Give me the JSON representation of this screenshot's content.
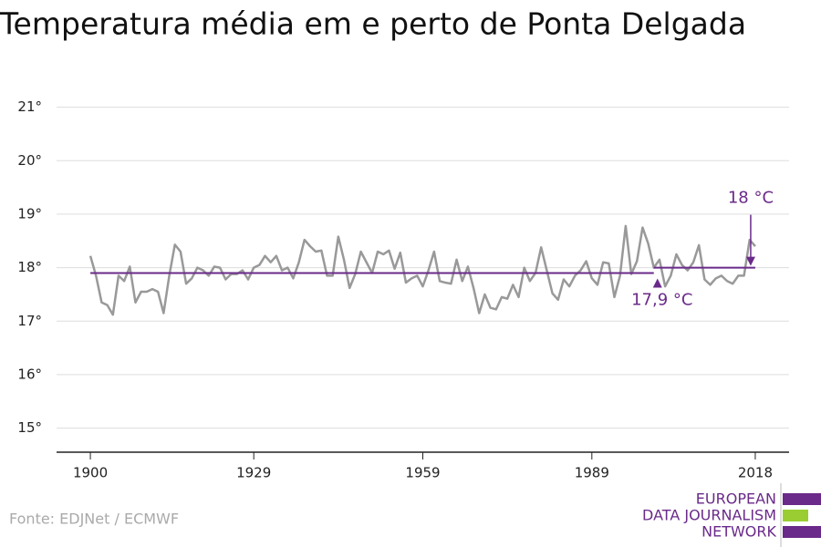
{
  "chart_data": {
    "type": "line",
    "title": "Temperatura média em e perto de Ponta Delgada",
    "source": "Fonte: EDJNet / ECMWF",
    "logo": [
      "EUROPEAN",
      "DATA JOURNALISM",
      "NETWORK"
    ],
    "x": [
      1900,
      1901,
      1902,
      1903,
      1904,
      1905,
      1906,
      1907,
      1908,
      1909,
      1910,
      1911,
      1912,
      1913,
      1914,
      1915,
      1916,
      1917,
      1918,
      1919,
      1920,
      1921,
      1922,
      1923,
      1924,
      1925,
      1926,
      1927,
      1928,
      1929,
      1930,
      1931,
      1932,
      1933,
      1934,
      1935,
      1936,
      1937,
      1938,
      1939,
      1940,
      1941,
      1942,
      1943,
      1944,
      1945,
      1946,
      1947,
      1948,
      1949,
      1950,
      1951,
      1952,
      1953,
      1954,
      1955,
      1956,
      1957,
      1958,
      1959,
      1960,
      1961,
      1962,
      1963,
      1964,
      1965,
      1966,
      1967,
      1968,
      1969,
      1970,
      1971,
      1972,
      1973,
      1974,
      1975,
      1976,
      1977,
      1978,
      1979,
      1980,
      1981,
      1982,
      1983,
      1984,
      1985,
      1986,
      1987,
      1988,
      1989,
      1990,
      1991,
      1992,
      1993,
      1994,
      1995,
      1996,
      1997,
      1998,
      1999,
      2000,
      2001,
      2002,
      2003,
      2004,
      2005,
      2006,
      2007,
      2008,
      2009,
      2010,
      2011,
      2012,
      2013,
      2014,
      2015,
      2016,
      2017,
      2018
    ],
    "series": [
      {
        "color": "#999999",
        "values": [
          18.22,
          17.85,
          17.35,
          17.3,
          17.12,
          17.85,
          17.75,
          18.02,
          17.35,
          17.55,
          17.55,
          17.6,
          17.55,
          17.15,
          17.85,
          18.43,
          18.3,
          17.7,
          17.8,
          18.0,
          17.95,
          17.85,
          18.02,
          18.0,
          17.78,
          17.88,
          17.88,
          17.95,
          17.78,
          18.0,
          18.05,
          18.22,
          18.1,
          18.22,
          17.95,
          18.0,
          17.8,
          18.1,
          18.52,
          18.4,
          18.3,
          18.32,
          17.85,
          17.85,
          18.58,
          18.15,
          17.62,
          17.88,
          18.3,
          18.1,
          17.9,
          18.3,
          18.25,
          18.32,
          17.98,
          18.28,
          17.72,
          17.8,
          17.85,
          17.65,
          17.95,
          18.3,
          17.75,
          17.72,
          17.7,
          18.15,
          17.75,
          18.02,
          17.62,
          17.15,
          17.5,
          17.25,
          17.22,
          17.45,
          17.42,
          17.68,
          17.45,
          18.0,
          17.75,
          17.9,
          18.38,
          17.95,
          17.52,
          17.4,
          17.78,
          17.65,
          17.85,
          17.95,
          18.12,
          17.8,
          17.68,
          18.1,
          18.08,
          17.45,
          17.85,
          18.78,
          17.88,
          18.12,
          18.75,
          18.45,
          18.0,
          18.15,
          17.65,
          17.85,
          18.25,
          18.05,
          17.95,
          18.1,
          18.42,
          17.78,
          17.68,
          17.8,
          17.85,
          17.75,
          17.7,
          17.85,
          17.85,
          18.52,
          18.4
        ]
      }
    ],
    "reference_lines": [
      {
        "value": 17.9,
        "x": [
          1900,
          2000
        ],
        "label": "17,9 °C",
        "color": "#6a2a8a"
      },
      {
        "value": 18,
        "x": [
          2000,
          2018
        ],
        "label": "18 °C",
        "color": "#6a2a8a"
      }
    ],
    "xlim": [
      1894,
      2024
    ],
    "xticks": [
      1900,
      1929,
      1959,
      1989,
      2018
    ],
    "ylim": [
      14.55,
      21.3
    ],
    "yticks": [
      {
        "value": 15,
        "label": "15°"
      },
      {
        "value": 16,
        "label": "16°"
      },
      {
        "value": 17,
        "label": "17°"
      },
      {
        "value": 18,
        "label": "18°"
      },
      {
        "value": 19,
        "label": "19°"
      },
      {
        "value": 20,
        "label": "20°"
      },
      {
        "value": 21,
        "label": "21°"
      }
    ],
    "grid": true
  }
}
